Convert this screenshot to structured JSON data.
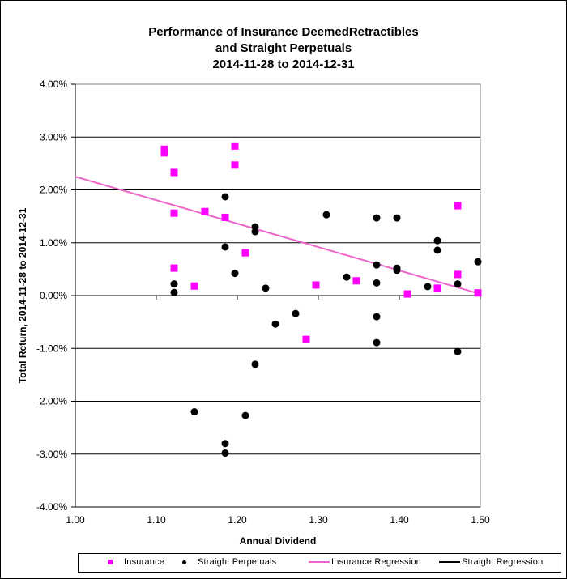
{
  "chart_data": {
    "type": "scatter",
    "title": [
      "Performance of Insurance DeemedRetractibles",
      "and Straight Perpetuals",
      "2014-11-28 to 2014-12-31"
    ],
    "xlabel": "Annual Dividend",
    "ylabel": "Total Return, 2014-11-28  to 2014-12-31",
    "xlim": [
      1.0,
      1.5
    ],
    "ylim": [
      -4.0,
      4.0
    ],
    "x_ticks": [
      "1.00",
      "1.10",
      "1.20",
      "1.30",
      "1.40",
      "1.50"
    ],
    "x_tick_values": [
      1.0,
      1.1,
      1.2,
      1.3,
      1.4,
      1.5
    ],
    "y_ticks": [
      "4.00%",
      "3.00%",
      "2.00%",
      "1.00%",
      "0.00%",
      "-1.00%",
      "-2.00%",
      "-3.00%",
      "-4.00%"
    ],
    "y_tick_values": [
      4,
      3,
      2,
      1,
      0,
      -1,
      -2,
      -3,
      -4
    ],
    "grid": "horizontal",
    "legend_position": "bottom",
    "colors": {
      "insurance": "#ff00ff",
      "straight": "#000000",
      "insurance_regression": "#ee66cc",
      "straight_regression": "#000000"
    },
    "series": [
      {
        "name": "Insurance",
        "marker": "square",
        "points": [
          [
            1.11,
            2.77
          ],
          [
            1.11,
            2.7
          ],
          [
            1.122,
            2.33
          ],
          [
            1.122,
            1.56
          ],
          [
            1.122,
            0.52
          ],
          [
            1.147,
            0.18
          ],
          [
            1.16,
            1.59
          ],
          [
            1.185,
            1.48
          ],
          [
            1.197,
            2.83
          ],
          [
            1.197,
            2.47
          ],
          [
            1.21,
            0.81
          ],
          [
            1.285,
            -0.83
          ],
          [
            1.297,
            0.2
          ],
          [
            1.347,
            0.28
          ],
          [
            1.41,
            0.03
          ],
          [
            1.447,
            0.14
          ],
          [
            1.472,
            1.7
          ],
          [
            1.472,
            0.4
          ],
          [
            1.497,
            0.05
          ]
        ]
      },
      {
        "name": "Straight Perpetuals",
        "marker": "circle",
        "points": [
          [
            1.122,
            0.22
          ],
          [
            1.122,
            0.06
          ],
          [
            1.147,
            -2.2
          ],
          [
            1.185,
            1.87
          ],
          [
            1.185,
            0.92
          ],
          [
            1.185,
            -2.8
          ],
          [
            1.185,
            -2.98
          ],
          [
            1.197,
            0.42
          ],
          [
            1.21,
            -2.27
          ],
          [
            1.222,
            1.3
          ],
          [
            1.222,
            1.21
          ],
          [
            1.222,
            -1.3
          ],
          [
            1.235,
            0.14
          ],
          [
            1.247,
            -0.54
          ],
          [
            1.272,
            -0.34
          ],
          [
            1.31,
            1.53
          ],
          [
            1.335,
            0.35
          ],
          [
            1.372,
            1.47
          ],
          [
            1.372,
            0.58
          ],
          [
            1.372,
            0.24
          ],
          [
            1.372,
            -0.4
          ],
          [
            1.372,
            -0.89
          ],
          [
            1.397,
            1.47
          ],
          [
            1.397,
            0.52
          ],
          [
            1.397,
            0.48
          ],
          [
            1.435,
            0.17
          ],
          [
            1.447,
            1.04
          ],
          [
            1.447,
            0.86
          ],
          [
            1.472,
            0.22
          ],
          [
            1.472,
            -1.06
          ],
          [
            1.497,
            0.64
          ]
        ]
      },
      {
        "name": "Insurance Regression",
        "type": "line",
        "points": [
          [
            1.0,
            2.25
          ],
          [
            1.5,
            0.03
          ]
        ]
      },
      {
        "name": "Straight Regression",
        "type": "line",
        "points": []
      }
    ]
  },
  "legend": {
    "items": [
      "Insurance",
      "Straight Perpetuals",
      "Insurance Regression",
      "Straight Regression"
    ]
  }
}
